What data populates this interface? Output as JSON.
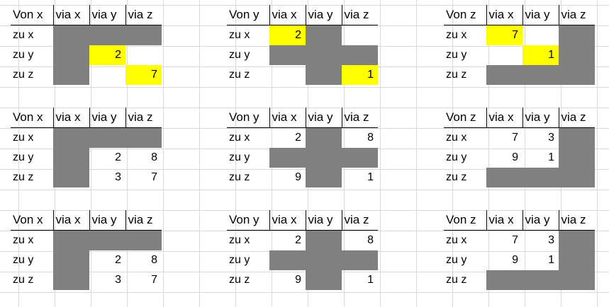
{
  "tables": [
    {
      "header": [
        "Von x",
        "via x",
        "via y",
        "via z"
      ],
      "rows": [
        {
          "label": "zu x",
          "cells": [
            {
              "v": "",
              "f": "gray"
            },
            {
              "v": "",
              "f": "gray"
            },
            {
              "v": "",
              "f": "gray"
            }
          ]
        },
        {
          "label": "zu y",
          "cells": [
            {
              "v": "",
              "f": "gray"
            },
            {
              "v": "2",
              "f": "yellow"
            },
            {
              "v": "",
              "f": ""
            }
          ]
        },
        {
          "label": "zu z",
          "cells": [
            {
              "v": "",
              "f": "gray"
            },
            {
              "v": "",
              "f": ""
            },
            {
              "v": "7",
              "f": "yellow"
            }
          ]
        }
      ]
    },
    {
      "header": [
        "Von y",
        "via x",
        "via y",
        "via z"
      ],
      "rows": [
        {
          "label": "zu x",
          "cells": [
            {
              "v": "2",
              "f": "yellow"
            },
            {
              "v": "",
              "f": "gray"
            },
            {
              "v": "",
              "f": ""
            }
          ]
        },
        {
          "label": "zu y",
          "cells": [
            {
              "v": "",
              "f": "gray"
            },
            {
              "v": "",
              "f": "gray"
            },
            {
              "v": "",
              "f": "gray"
            }
          ]
        },
        {
          "label": "zu z",
          "cells": [
            {
              "v": "",
              "f": ""
            },
            {
              "v": "",
              "f": "gray"
            },
            {
              "v": "1",
              "f": "yellow"
            }
          ]
        }
      ]
    },
    {
      "header": [
        "Von z",
        "via x",
        "via y",
        "via z"
      ],
      "rows": [
        {
          "label": "zu x",
          "cells": [
            {
              "v": "7",
              "f": "yellow"
            },
            {
              "v": "",
              "f": ""
            },
            {
              "v": "",
              "f": "gray"
            }
          ]
        },
        {
          "label": "zu y",
          "cells": [
            {
              "v": "",
              "f": ""
            },
            {
              "v": "1",
              "f": "yellow"
            },
            {
              "v": "",
              "f": "gray"
            }
          ]
        },
        {
          "label": "zu z",
          "cells": [
            {
              "v": "",
              "f": "gray"
            },
            {
              "v": "",
              "f": "gray"
            },
            {
              "v": "",
              "f": "gray"
            }
          ]
        }
      ]
    },
    {
      "header": [
        "Von x",
        "via x",
        "via y",
        "via z"
      ],
      "rows": [
        {
          "label": "zu x",
          "cells": [
            {
              "v": "",
              "f": "gray"
            },
            {
              "v": "",
              "f": "gray"
            },
            {
              "v": "",
              "f": "gray"
            }
          ]
        },
        {
          "label": "zu y",
          "cells": [
            {
              "v": "",
              "f": "gray"
            },
            {
              "v": "2",
              "f": ""
            },
            {
              "v": "8",
              "f": ""
            }
          ]
        },
        {
          "label": "zu z",
          "cells": [
            {
              "v": "",
              "f": "gray"
            },
            {
              "v": "3",
              "f": ""
            },
            {
              "v": "7",
              "f": ""
            }
          ]
        }
      ]
    },
    {
      "header": [
        "Von y",
        "via x",
        "via y",
        "via z"
      ],
      "rows": [
        {
          "label": "zu x",
          "cells": [
            {
              "v": "2",
              "f": ""
            },
            {
              "v": "",
              "f": "gray"
            },
            {
              "v": "8",
              "f": ""
            }
          ]
        },
        {
          "label": "zu y",
          "cells": [
            {
              "v": "",
              "f": "gray"
            },
            {
              "v": "",
              "f": "gray"
            },
            {
              "v": "",
              "f": "gray"
            }
          ]
        },
        {
          "label": "zu z",
          "cells": [
            {
              "v": "9",
              "f": ""
            },
            {
              "v": "",
              "f": "gray"
            },
            {
              "v": "1",
              "f": ""
            }
          ]
        }
      ]
    },
    {
      "header": [
        "Von z",
        "via x",
        "via y",
        "via z"
      ],
      "rows": [
        {
          "label": "zu x",
          "cells": [
            {
              "v": "7",
              "f": ""
            },
            {
              "v": "3",
              "f": ""
            },
            {
              "v": "",
              "f": "gray"
            }
          ]
        },
        {
          "label": "zu y",
          "cells": [
            {
              "v": "9",
              "f": ""
            },
            {
              "v": "1",
              "f": ""
            },
            {
              "v": "",
              "f": "gray"
            }
          ]
        },
        {
          "label": "zu z",
          "cells": [
            {
              "v": "",
              "f": "gray"
            },
            {
              "v": "",
              "f": "gray"
            },
            {
              "v": "",
              "f": "gray"
            }
          ]
        }
      ]
    },
    {
      "header": [
        "Von x",
        "via x",
        "via y",
        "via z"
      ],
      "rows": [
        {
          "label": "zu x",
          "cells": [
            {
              "v": "",
              "f": "gray"
            },
            {
              "v": "",
              "f": "gray"
            },
            {
              "v": "",
              "f": "gray"
            }
          ]
        },
        {
          "label": "zu y",
          "cells": [
            {
              "v": "",
              "f": "gray"
            },
            {
              "v": "2",
              "f": ""
            },
            {
              "v": "8",
              "f": ""
            }
          ]
        },
        {
          "label": "zu z",
          "cells": [
            {
              "v": "",
              "f": "gray"
            },
            {
              "v": "3",
              "f": ""
            },
            {
              "v": "7",
              "f": ""
            }
          ]
        }
      ]
    },
    {
      "header": [
        "Von y",
        "via x",
        "via y",
        "via z"
      ],
      "rows": [
        {
          "label": "zu x",
          "cells": [
            {
              "v": "2",
              "f": ""
            },
            {
              "v": "",
              "f": "gray"
            },
            {
              "v": "8",
              "f": ""
            }
          ]
        },
        {
          "label": "zu y",
          "cells": [
            {
              "v": "",
              "f": "gray"
            },
            {
              "v": "",
              "f": "gray"
            },
            {
              "v": "",
              "f": "gray"
            }
          ]
        },
        {
          "label": "zu z",
          "cells": [
            {
              "v": "9",
              "f": ""
            },
            {
              "v": "",
              "f": "gray"
            },
            {
              "v": "1",
              "f": ""
            }
          ]
        }
      ]
    },
    {
      "header": [
        "Von z",
        "via x",
        "via y",
        "via z"
      ],
      "rows": [
        {
          "label": "zu x",
          "cells": [
            {
              "v": "7",
              "f": ""
            },
            {
              "v": "3",
              "f": ""
            },
            {
              "v": "",
              "f": "gray"
            }
          ]
        },
        {
          "label": "zu y",
          "cells": [
            {
              "v": "9",
              "f": ""
            },
            {
              "v": "1",
              "f": ""
            },
            {
              "v": "",
              "f": "gray"
            }
          ]
        },
        {
          "label": "zu z",
          "cells": [
            {
              "v": "",
              "f": "gray"
            },
            {
              "v": "",
              "f": "gray"
            },
            {
              "v": "",
              "f": "gray"
            }
          ]
        }
      ]
    }
  ],
  "colors": {
    "gray": "#808080",
    "yellow": "#ffff00",
    "gridline": "#d9d9d9"
  }
}
